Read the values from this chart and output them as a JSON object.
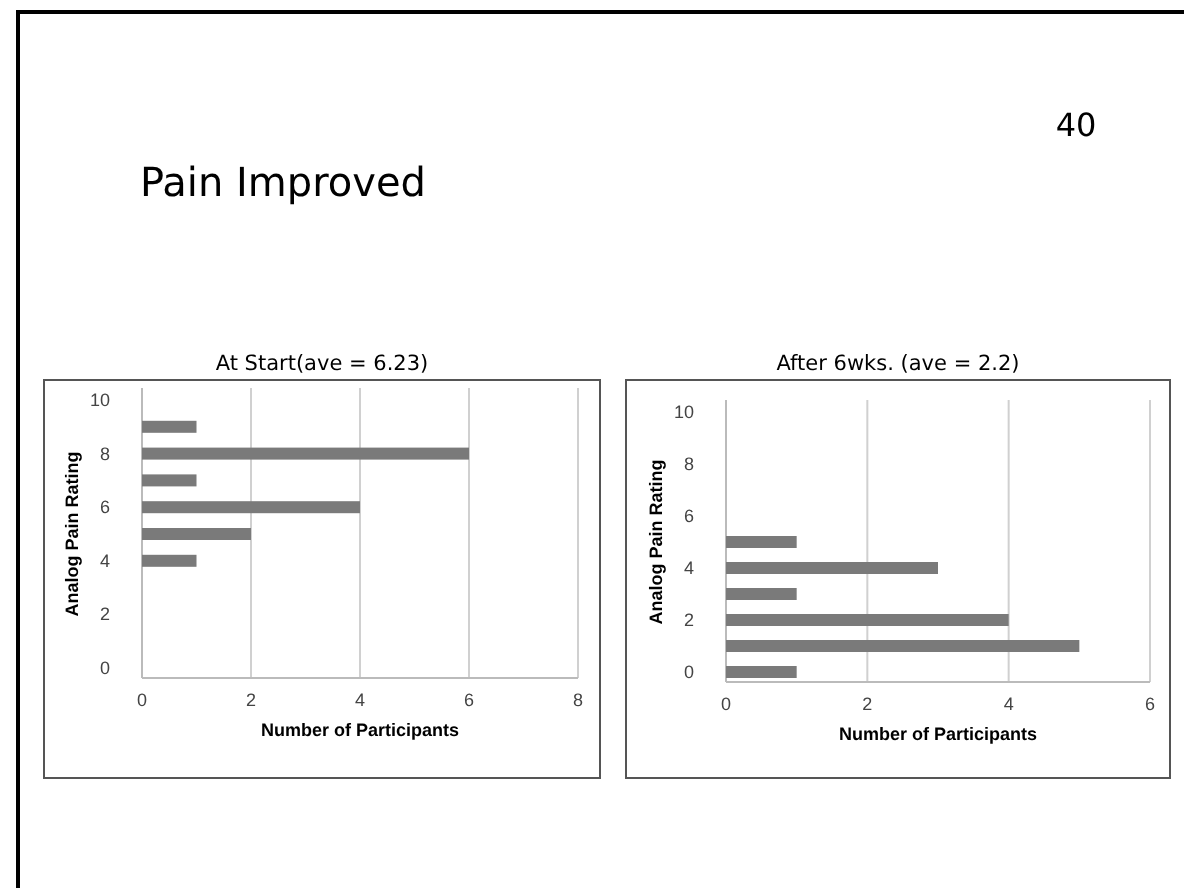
{
  "chart_data": [
    {
      "type": "bar",
      "orientation": "horizontal",
      "title": "At Start(ave = 6.23)",
      "xlabel": "Number of Participants",
      "ylabel": "Analog Pain Rating",
      "annotations": [
        "Pain Improved",
        "40"
      ],
      "categories": [
        "10",
        null,
        "8",
        null,
        "6",
        null,
        "4",
        null,
        "2",
        null,
        "0"
      ],
      "values": [
        null,
        1,
        6,
        1,
        4,
        2,
        1,
        null,
        null,
        null,
        null
      ],
      "color": "#7a7a7a",
      "xlim": [
        0,
        8
      ],
      "xticks": [
        0,
        2,
        4,
        6,
        8
      ],
      "grid": "x"
    },
    {
      "type": "bar",
      "orientation": "horizontal",
      "title": "After 6wks. (ave = 2.2)",
      "xlabel": "Number of Participants",
      "ylabel": "Analog Pain Rating",
      "categories": [
        "10",
        null,
        "8",
        null,
        "6",
        null,
        "4",
        null,
        "2",
        null,
        "0"
      ],
      "values": [
        null,
        null,
        null,
        null,
        null,
        1,
        3,
        1,
        4,
        5,
        1
      ],
      "color": "#7a7a7a",
      "xlim": [
        0,
        6
      ],
      "xticks": [
        0,
        2,
        4,
        6
      ],
      "grid": "x"
    }
  ]
}
